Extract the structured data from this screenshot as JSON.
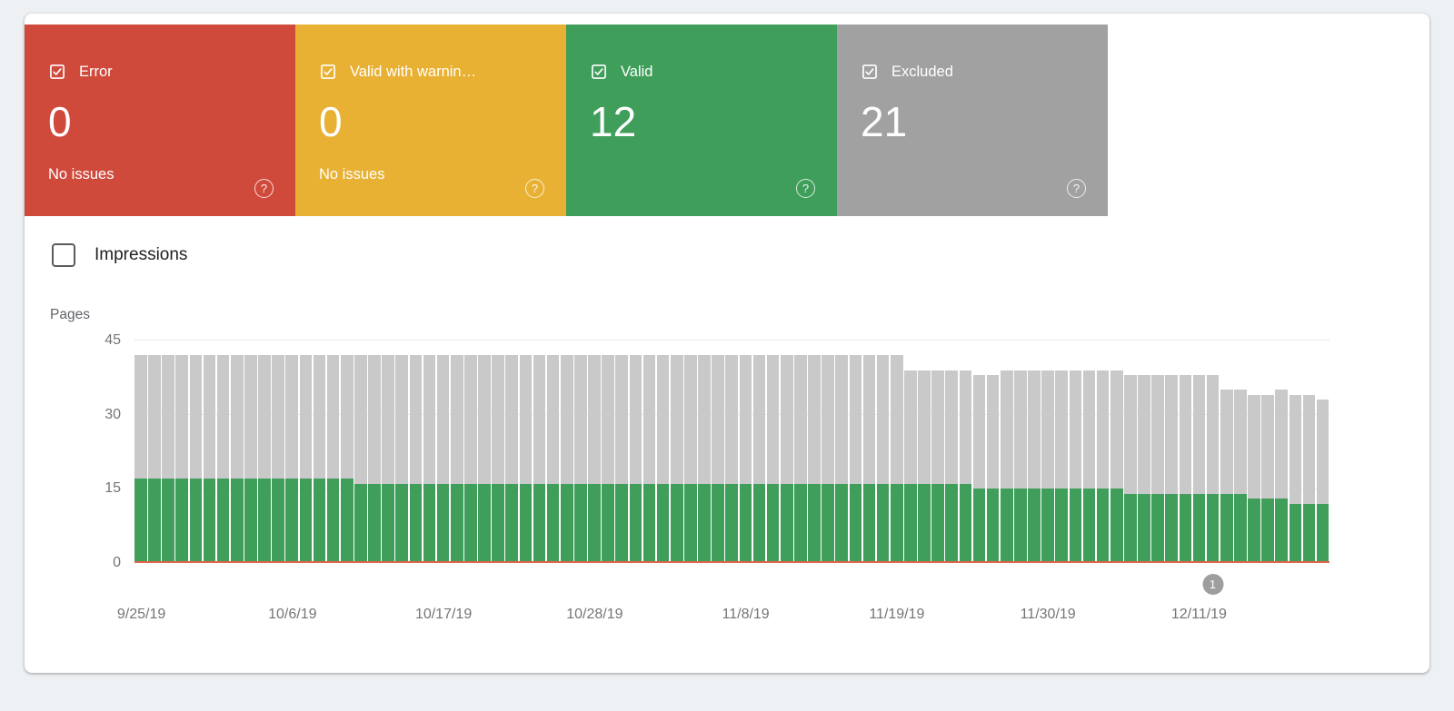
{
  "status_cards": [
    {
      "label": "Error",
      "count": "0",
      "sub": "No issues",
      "color": "#d04a3c"
    },
    {
      "label": "Valid with warnin…",
      "count": "0",
      "sub": "No issues",
      "color": "#e8b133"
    },
    {
      "label": "Valid",
      "count": "12",
      "sub": "",
      "color": "#3e9e5a"
    },
    {
      "label": "Excluded",
      "count": "21",
      "sub": "",
      "color": "#a1a1a1"
    }
  ],
  "impressions": {
    "label": "Impressions",
    "checked": false
  },
  "chart_data": {
    "type": "bar",
    "stacked": true,
    "title": "",
    "ylabel": "Pages",
    "xlabel": "",
    "ylim": [
      0,
      45
    ],
    "yticks": [
      0,
      15,
      30,
      45
    ],
    "grid": true,
    "legend": false,
    "x_tick_labels": [
      "9/25/19",
      "10/6/19",
      "10/17/19",
      "10/28/19",
      "11/8/19",
      "11/19/19",
      "11/30/19",
      "12/11/19"
    ],
    "x_tick_indices": [
      0,
      11,
      22,
      33,
      44,
      55,
      66,
      77
    ],
    "dates": [
      "9/25/19",
      "9/26/19",
      "9/27/19",
      "9/28/19",
      "9/29/19",
      "9/30/19",
      "10/1/19",
      "10/2/19",
      "10/3/19",
      "10/4/19",
      "10/5/19",
      "10/6/19",
      "10/7/19",
      "10/8/19",
      "10/9/19",
      "10/10/19",
      "10/11/19",
      "10/12/19",
      "10/13/19",
      "10/14/19",
      "10/15/19",
      "10/16/19",
      "10/17/19",
      "10/18/19",
      "10/19/19",
      "10/20/19",
      "10/21/19",
      "10/22/19",
      "10/23/19",
      "10/24/19",
      "10/25/19",
      "10/26/19",
      "10/27/19",
      "10/28/19",
      "10/29/19",
      "10/30/19",
      "10/31/19",
      "11/1/19",
      "11/2/19",
      "11/3/19",
      "11/4/19",
      "11/5/19",
      "11/6/19",
      "11/7/19",
      "11/8/19",
      "11/9/19",
      "11/10/19",
      "11/11/19",
      "11/12/19",
      "11/13/19",
      "11/14/19",
      "11/15/19",
      "11/16/19",
      "11/17/19",
      "11/18/19",
      "11/19/19",
      "11/20/19",
      "11/21/19",
      "11/22/19",
      "11/23/19",
      "11/24/19",
      "11/25/19",
      "11/26/19",
      "11/27/19",
      "11/28/19",
      "11/29/19",
      "11/30/19",
      "12/1/19",
      "12/2/19",
      "12/3/19",
      "12/4/19",
      "12/5/19",
      "12/6/19",
      "12/7/19",
      "12/8/19",
      "12/9/19",
      "12/10/19",
      "12/11/19",
      "12/12/19",
      "12/13/19",
      "12/14/19",
      "12/15/19",
      "12/16/19",
      "12/17/19",
      "12/18/19"
    ],
    "series": [
      {
        "name": "Valid",
        "color": "#3e9e5a",
        "values": [
          17,
          17,
          17,
          17,
          17,
          17,
          17,
          17,
          17,
          17,
          17,
          17,
          17,
          17,
          17,
          17,
          16,
          16,
          16,
          16,
          16,
          16,
          16,
          16,
          16,
          16,
          16,
          16,
          16,
          16,
          16,
          16,
          16,
          16,
          16,
          16,
          16,
          16,
          16,
          16,
          16,
          16,
          16,
          16,
          16,
          16,
          16,
          16,
          16,
          16,
          16,
          16,
          16,
          16,
          16,
          16,
          16,
          16,
          16,
          16,
          16,
          15,
          15,
          15,
          15,
          15,
          15,
          15,
          15,
          15,
          15,
          15,
          14,
          14,
          14,
          14,
          14,
          14,
          14,
          14,
          14,
          13,
          13,
          13,
          12,
          12,
          12
        ]
      },
      {
        "name": "Excluded",
        "color": "#c9c9c9",
        "values": [
          25,
          25,
          25,
          25,
          25,
          25,
          25,
          25,
          25,
          25,
          25,
          25,
          25,
          25,
          25,
          25,
          26,
          26,
          26,
          26,
          26,
          26,
          26,
          26,
          26,
          26,
          26,
          26,
          26,
          26,
          26,
          26,
          26,
          26,
          26,
          26,
          26,
          26,
          26,
          26,
          26,
          26,
          26,
          26,
          26,
          26,
          26,
          26,
          26,
          26,
          26,
          26,
          26,
          26,
          26,
          26,
          23,
          23,
          23,
          23,
          23,
          23,
          23,
          24,
          24,
          24,
          24,
          24,
          24,
          24,
          24,
          24,
          24,
          24,
          24,
          24,
          24,
          24,
          24,
          21,
          21,
          21,
          21,
          22,
          22,
          22,
          21,
          21,
          21
        ]
      },
      {
        "name": "Error",
        "color": "#e0654a",
        "baseline_value": 0
      }
    ],
    "marker": {
      "label": "1",
      "index": 78
    }
  }
}
